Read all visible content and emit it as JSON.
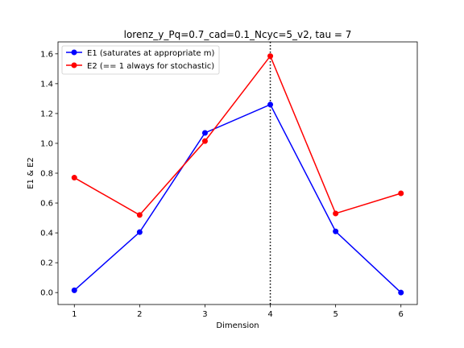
{
  "chart_data": {
    "type": "line",
    "title": "lorenz_y_Pq=0.7_cad=0.1_Ncyc=5_v2, tau = 7",
    "xlabel": "Dimension",
    "ylabel": "E1 & E2",
    "x": [
      1,
      2,
      3,
      4,
      5,
      6
    ],
    "xlim": [
      0.75,
      6.25
    ],
    "ylim": [
      -0.08,
      1.68
    ],
    "xticks": [
      "1",
      "2",
      "3",
      "4",
      "5",
      "6"
    ],
    "yticks": [
      "0.0",
      "0.2",
      "0.4",
      "0.6",
      "0.8",
      "1.0",
      "1.2",
      "1.4",
      "1.6"
    ],
    "grid": false,
    "legend_position": "upper-left",
    "reference_line": {
      "x": 4,
      "style": "dotted",
      "color": "#000000"
    },
    "series": [
      {
        "name": "E1 (saturates at appropriate m)",
        "color": "#0000ff",
        "values": [
          0.015,
          0.405,
          1.07,
          1.26,
          0.41,
          0.0
        ]
      },
      {
        "name": "E2 (== 1 always for stochastic)",
        "color": "#ff0000",
        "values": [
          0.77,
          0.52,
          1.015,
          1.585,
          0.53,
          0.665
        ]
      }
    ]
  }
}
